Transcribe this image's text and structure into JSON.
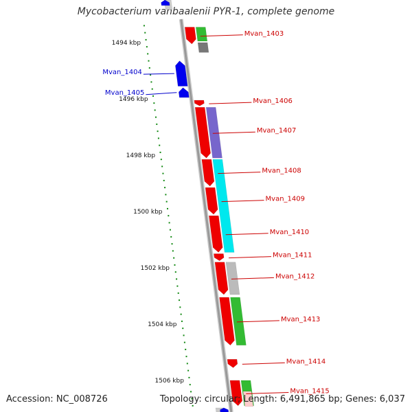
{
  "title": "Mycobacterium vanbaalenii PYR-1, complete genome",
  "footer": {
    "accession": "Accession: NC_008726",
    "topology": "Topology: circular; Length: 6,491,865 bp; Genes: 6,037"
  },
  "colors": {
    "forward_label": "#cc0000",
    "reverse_label": "#0000cc",
    "tick": "#118811",
    "backbone": "#999999",
    "red_gene": "#ee0000",
    "blue_gene": "#0000ee",
    "green_gene": "#33bb33",
    "grey_gene": "#777777",
    "light_grey_gene": "#bbbbbb",
    "purple_gene": "#7766cc",
    "cyan_gene": "#00e8ee"
  },
  "axis": {
    "unit": "kbp",
    "major_ticks": [
      {
        "kbp": 1494,
        "label": "1494 kbp"
      },
      {
        "kbp": 1496,
        "label": "1496 kbp"
      },
      {
        "kbp": 1498,
        "label": "1498 kbp"
      },
      {
        "kbp": 1500,
        "label": "1500 kbp"
      },
      {
        "kbp": 1502,
        "label": "1502 kbp"
      },
      {
        "kbp": 1504,
        "label": "1504 kbp"
      },
      {
        "kbp": 1506,
        "label": "1506 kbp"
      }
    ]
  },
  "genes": [
    {
      "name": "Mvan_1403",
      "strand": "forward",
      "color": "red",
      "start_kbp": 1493.45,
      "end_kbp": 1494.05
    },
    {
      "name": "Mvan_1404",
      "strand": "reverse",
      "color": "blue",
      "start_kbp": 1494.65,
      "end_kbp": 1495.55
    },
    {
      "name": "Mvan_1405",
      "strand": "reverse",
      "color": "blue",
      "start_kbp": 1495.6,
      "end_kbp": 1495.95
    },
    {
      "name": "Mvan_1406",
      "strand": "forward",
      "color": "red",
      "start_kbp": 1496.05,
      "end_kbp": 1496.25
    },
    {
      "name": "Mvan_1407",
      "strand": "forward",
      "color": "red",
      "start_kbp": 1496.3,
      "end_kbp": 1498.1
    },
    {
      "name": "Mvan_1408",
      "strand": "forward",
      "color": "red",
      "start_kbp": 1498.15,
      "end_kbp": 1499.1
    },
    {
      "name": "Mvan_1409",
      "strand": "forward",
      "color": "red",
      "start_kbp": 1499.15,
      "end_kbp": 1500.1
    },
    {
      "name": "Mvan_1410",
      "strand": "forward",
      "color": "red",
      "start_kbp": 1500.15,
      "end_kbp": 1501.45
    },
    {
      "name": "Mvan_1411",
      "strand": "forward",
      "color": "red",
      "start_kbp": 1501.5,
      "end_kbp": 1501.75
    },
    {
      "name": "Mvan_1412",
      "strand": "forward",
      "color": "red",
      "start_kbp": 1501.8,
      "end_kbp": 1502.95
    },
    {
      "name": "Mvan_1413",
      "strand": "forward",
      "color": "red",
      "start_kbp": 1503.05,
      "end_kbp": 1504.75
    },
    {
      "name": "Mvan_1414",
      "strand": "forward",
      "color": "red",
      "start_kbp": 1505.25,
      "end_kbp": 1505.55
    },
    {
      "name": "Mvan_1415",
      "strand": "forward",
      "color": "red",
      "start_kbp": 1506.0,
      "end_kbp": 1506.9
    }
  ],
  "features": [
    {
      "color": "green",
      "start_kbp": 1493.45,
      "end_kbp": 1493.95
    },
    {
      "color": "grey",
      "start_kbp": 1494.0,
      "end_kbp": 1494.35
    },
    {
      "color": "purple",
      "start_kbp": 1496.3,
      "end_kbp": 1498.1
    },
    {
      "color": "cyan",
      "start_kbp": 1498.15,
      "end_kbp": 1501.45
    },
    {
      "color": "light_grey",
      "start_kbp": 1501.8,
      "end_kbp": 1502.95
    },
    {
      "color": "green",
      "start_kbp": 1503.05,
      "end_kbp": 1504.75
    },
    {
      "color": "green",
      "start_kbp": 1506.0,
      "end_kbp": 1506.9
    }
  ]
}
